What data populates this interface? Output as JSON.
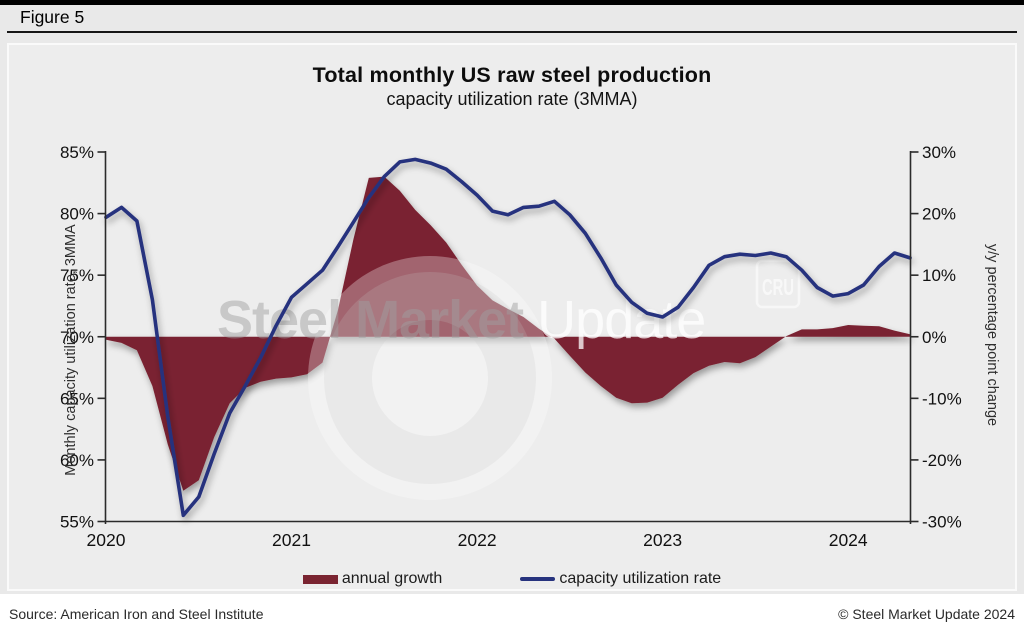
{
  "figure_label": "Figure 5",
  "chart_data": {
    "type": "line+area",
    "title": "Total monthly US raw steel production",
    "subtitle": "capacity utilization rate (3MMA)",
    "x_unit": "month",
    "x_start": "2020-01",
    "x_end": "2024-05",
    "x_tick_labels": [
      "2020",
      "2021",
      "2022",
      "2023",
      "2024"
    ],
    "grid": false,
    "legend_position": "bottom-center",
    "left_axis": {
      "label": "Monthly capacity utilization rate, 3MMA",
      "min": 55,
      "max": 85,
      "ticks": [
        {
          "value": 85,
          "label": "85%"
        },
        {
          "value": 80,
          "label": "80%"
        },
        {
          "value": 75,
          "label": "75%"
        },
        {
          "value": 70,
          "label": "70%"
        },
        {
          "value": 65,
          "label": "65%"
        },
        {
          "value": 60,
          "label": "60%"
        },
        {
          "value": 55,
          "label": "55%"
        }
      ]
    },
    "right_axis": {
      "label": "y/y percentage point change",
      "min": -30,
      "max": 30,
      "ticks": [
        {
          "value": 30,
          "label": "30%"
        },
        {
          "value": 20,
          "label": "20%"
        },
        {
          "value": 10,
          "label": "10%"
        },
        {
          "value": 0,
          "label": "0%"
        },
        {
          "value": -10,
          "label": "-10%"
        },
        {
          "value": -20,
          "label": "-20%"
        },
        {
          "value": -30,
          "label": "-30%"
        }
      ]
    },
    "series": [
      {
        "name": "annual growth",
        "type": "area",
        "axis": "right",
        "color": "#7a2431",
        "values": [
          -0.5,
          -1.0,
          -2.2,
          -8.0,
          -17.5,
          -25.0,
          -23.3,
          -16.3,
          -10.8,
          -8.3,
          -7.3,
          -6.8,
          -6.6,
          -6.1,
          -4.2,
          4.3,
          15.8,
          25.8,
          26.0,
          23.7,
          20.6,
          18.1,
          15.3,
          11.7,
          8.3,
          5.9,
          4.5,
          3.2,
          1.3,
          -0.3,
          -3.1,
          -5.8,
          -8.0,
          -9.9,
          -10.8,
          -10.7,
          -9.9,
          -7.8,
          -5.9,
          -4.7,
          -4.1,
          -4.3,
          -3.3,
          -1.6,
          0.1,
          1.2,
          1.2,
          1.4,
          1.9,
          1.8,
          1.7,
          1.0,
          0.4
        ]
      },
      {
        "name": "capacity utilization rate",
        "type": "line",
        "axis": "left",
        "color": "#27337e",
        "values": [
          79.7,
          80.5,
          79.4,
          73.0,
          63.5,
          55.5,
          57.0,
          60.5,
          63.8,
          66.0,
          68.3,
          70.9,
          73.2,
          74.3,
          75.4,
          77.3,
          79.3,
          81.3,
          83.0,
          84.2,
          84.4,
          84.1,
          83.6,
          82.6,
          81.5,
          80.2,
          79.9,
          80.5,
          80.6,
          81.0,
          79.9,
          78.4,
          76.4,
          74.2,
          72.8,
          71.9,
          71.6,
          72.4,
          74.0,
          75.8,
          76.5,
          76.7,
          76.6,
          76.8,
          76.5,
          75.4,
          74.0,
          73.3,
          73.5,
          74.2,
          75.7,
          76.8,
          76.4
        ]
      }
    ]
  },
  "watermark": {
    "brand_bold": "Steel Market",
    "brand_light": " Update",
    "badge": "CRU"
  },
  "footer": {
    "source": "Source: American Iron and Steel Institute",
    "copyright": "© Steel Market Update 2024"
  }
}
